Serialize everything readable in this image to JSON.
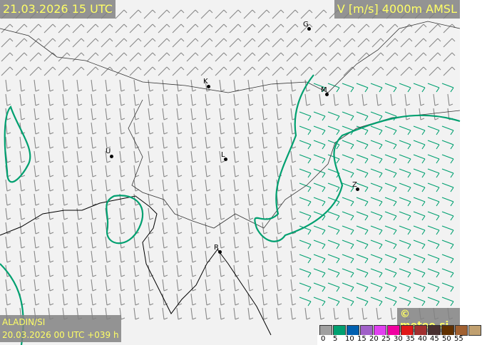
{
  "header": {
    "valid_time": "21.03.2026 15 UTC",
    "parameter": "V [m/s] 4000m AMSL"
  },
  "footer": {
    "model": "ALADIN/SI",
    "run": "20.03.2026 00 UTC +039 h",
    "copyright": "© meteo.si"
  },
  "legend": {
    "unit": "m/s",
    "colors": [
      "#a0a0a0",
      "#00a070",
      "#0060b0",
      "#a060c8",
      "#e040f0",
      "#f000a0",
      "#e01818",
      "#a03030",
      "#483030",
      "#603000",
      "#a06030",
      "#c0a070"
    ],
    "labels": [
      "0",
      "5",
      "10",
      "15",
      "20",
      "25",
      "30",
      "35",
      "40",
      "45",
      "50",
      "55"
    ]
  },
  "cities": [
    {
      "label": "G"
    },
    {
      "label": "K"
    },
    {
      "label": "M"
    },
    {
      "label": "U"
    },
    {
      "label": "L"
    },
    {
      "label": "Z"
    },
    {
      "label": "R"
    }
  ],
  "colors": {
    "contour": "#00a070",
    "barb_slow": "#888888",
    "barb_fast": "#00a070",
    "title_text": "#ffff66"
  }
}
